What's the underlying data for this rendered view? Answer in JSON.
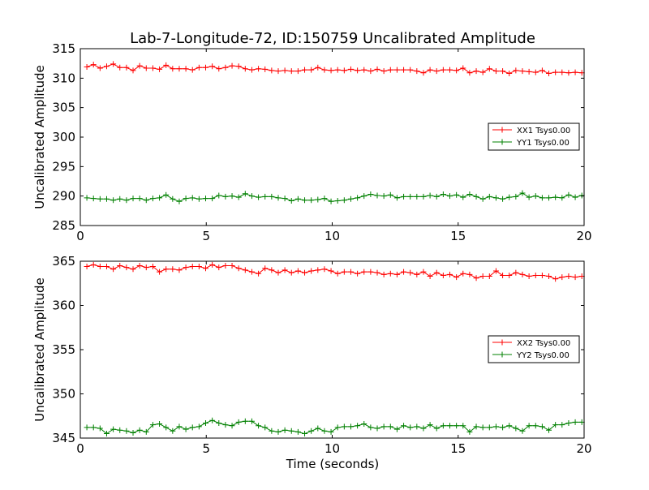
{
  "chart_data": [
    {
      "type": "line",
      "title": "Lab-7-Longitude-72, ID:150759 Uncalibrated Amplitude",
      "xlabel": "",
      "ylabel": "Uncalibrated Amplitude",
      "xlim": [
        0,
        20
      ],
      "ylim": [
        285,
        315
      ],
      "xticks": [
        "0",
        "5",
        "10",
        "15",
        "20"
      ],
      "yticks": [
        "285",
        "290",
        "295",
        "300",
        "305",
        "310",
        "315"
      ],
      "grid": false,
      "legend_position": "right",
      "x_start": 0.26,
      "x_step": 0.262,
      "series": [
        {
          "name": "XX1 Tsys0.00",
          "color": "#ff0000",
          "values": [
            311.9,
            312.3,
            311.7,
            312.0,
            312.4,
            311.8,
            311.8,
            311.3,
            312.1,
            311.7,
            311.7,
            311.5,
            312.2,
            311.6,
            311.6,
            311.6,
            311.4,
            311.8,
            311.8,
            312.0,
            311.6,
            311.8,
            312.1,
            312.0,
            311.6,
            311.4,
            311.6,
            311.5,
            311.3,
            311.2,
            311.3,
            311.2,
            311.2,
            311.4,
            311.4,
            311.8,
            311.4,
            311.3,
            311.4,
            311.3,
            311.5,
            311.3,
            311.4,
            311.2,
            311.5,
            311.2,
            311.4,
            311.4,
            311.4,
            311.4,
            311.2,
            310.9,
            311.4,
            311.2,
            311.4,
            311.4,
            311.3,
            311.7,
            310.9,
            311.2,
            311.0,
            311.6,
            311.2,
            311.2,
            310.8,
            311.3,
            311.2,
            311.1,
            311.0,
            311.3,
            310.8,
            311.0,
            311.0,
            310.9,
            311.0,
            310.9
          ]
        },
        {
          "name": "YY1 Tsys0.00",
          "color": "#008000",
          "values": [
            289.7,
            289.6,
            289.5,
            289.5,
            289.3,
            289.5,
            289.3,
            289.6,
            289.6,
            289.3,
            289.6,
            289.7,
            290.2,
            289.5,
            289.1,
            289.6,
            289.7,
            289.5,
            289.6,
            289.6,
            290.1,
            289.9,
            290.0,
            289.8,
            290.4,
            290.0,
            289.8,
            289.9,
            289.9,
            289.7,
            289.6,
            289.2,
            289.5,
            289.3,
            289.3,
            289.4,
            289.6,
            289.1,
            289.2,
            289.3,
            289.5,
            289.7,
            290.0,
            290.3,
            290.1,
            290.0,
            290.2,
            289.7,
            289.9,
            289.9,
            289.9,
            289.9,
            290.1,
            289.9,
            290.3,
            290.0,
            290.2,
            289.8,
            290.3,
            289.9,
            289.5,
            289.9,
            289.7,
            289.5,
            289.8,
            289.9,
            290.5,
            289.8,
            290.0,
            289.7,
            289.7,
            289.8,
            289.7,
            290.2,
            289.8,
            290.1
          ]
        }
      ]
    },
    {
      "type": "line",
      "title": "",
      "xlabel": "Time (seconds)",
      "ylabel": "Uncalibrated Amplitude",
      "xlim": [
        0,
        20
      ],
      "ylim": [
        345,
        365
      ],
      "xticks": [
        "0",
        "5",
        "10",
        "15",
        "20"
      ],
      "yticks": [
        "345",
        "350",
        "355",
        "360",
        "365"
      ],
      "grid": false,
      "legend_position": "right",
      "x_start": 0.26,
      "x_step": 0.262,
      "series": [
        {
          "name": "XX2 Tsys0.00",
          "color": "#ff0000",
          "values": [
            364.4,
            364.6,
            364.4,
            364.4,
            364.1,
            364.5,
            364.3,
            364.1,
            364.5,
            364.3,
            364.4,
            363.8,
            364.1,
            364.1,
            364.0,
            364.3,
            364.4,
            364.4,
            364.2,
            364.6,
            364.3,
            364.5,
            364.5,
            364.2,
            364.0,
            363.8,
            363.6,
            364.2,
            364.0,
            363.7,
            364.0,
            363.7,
            363.9,
            363.7,
            363.9,
            364.0,
            364.1,
            363.9,
            363.6,
            363.8,
            363.8,
            363.6,
            363.8,
            363.8,
            363.7,
            363.5,
            363.6,
            363.5,
            363.8,
            363.7,
            363.5,
            363.8,
            363.3,
            363.7,
            363.4,
            363.5,
            363.2,
            363.6,
            363.5,
            363.1,
            363.3,
            363.3,
            363.9,
            363.4,
            363.4,
            363.7,
            363.5,
            363.3,
            363.4,
            363.4,
            363.3,
            363.0,
            363.2,
            363.3,
            363.2,
            363.3
          ]
        },
        {
          "name": "YY2 Tsys0.00",
          "color": "#008000",
          "values": [
            346.2,
            346.2,
            346.1,
            345.5,
            346.0,
            345.9,
            345.8,
            345.6,
            345.9,
            345.7,
            346.5,
            346.6,
            346.2,
            345.8,
            346.3,
            346.0,
            346.2,
            346.3,
            346.7,
            347.0,
            346.7,
            346.5,
            346.4,
            346.8,
            346.9,
            346.9,
            346.4,
            346.2,
            345.8,
            345.7,
            345.9,
            345.8,
            345.7,
            345.5,
            345.8,
            346.1,
            345.8,
            345.7,
            346.2,
            346.3,
            346.3,
            346.4,
            346.6,
            346.2,
            346.1,
            346.3,
            346.3,
            346.0,
            346.4,
            346.2,
            346.3,
            346.1,
            346.5,
            346.1,
            346.4,
            346.4,
            346.4,
            346.4,
            345.7,
            346.3,
            346.2,
            346.2,
            346.3,
            346.2,
            346.4,
            346.1,
            345.8,
            346.4,
            346.4,
            346.3,
            345.9,
            346.5,
            346.5,
            346.7,
            346.8,
            346.8
          ]
        }
      ]
    }
  ]
}
